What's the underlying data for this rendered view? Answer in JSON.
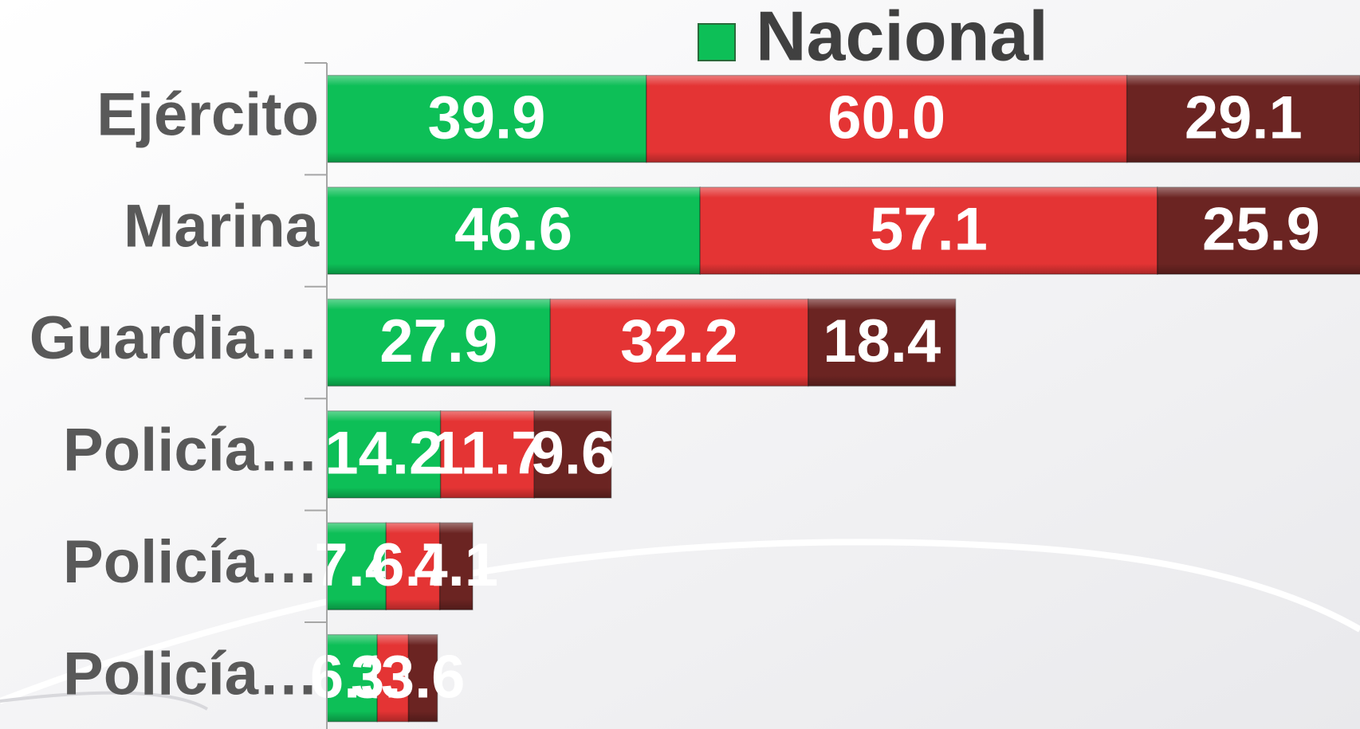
{
  "chart_data": {
    "type": "stacked-barh",
    "categories": [
      "Ejército",
      "Marina",
      "Guardia…",
      "Policía…",
      "Policía…",
      "Policía…"
    ],
    "series": [
      {
        "name": "Nacional",
        "color": "#0dbf57",
        "values": [
          39.9,
          46.6,
          27.9,
          14.2,
          7.4,
          6.3
        ]
      },
      {
        "color": "#e43434",
        "values": [
          60.0,
          57.1,
          32.2,
          11.7,
          6.7,
          3.9
        ],
        "value_labels": [
          "60.0",
          "57.1",
          "32.2",
          "11.7",
          "6.7",
          "3.9"
        ]
      },
      {
        "color": "#6b2422",
        "values": [
          29.1,
          25.9,
          18.4,
          9.6,
          4.1,
          3.6
        ]
      }
    ],
    "xlim": [
      0,
      129
    ],
    "legend": "top"
  }
}
